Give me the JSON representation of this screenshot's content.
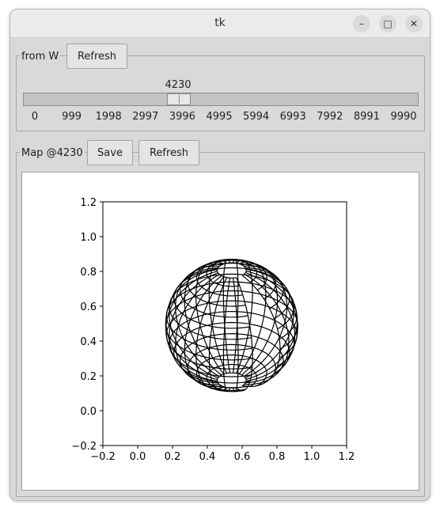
{
  "window": {
    "title": "tk"
  },
  "controls": {
    "minimize_glyph": "–",
    "maximize_glyph": "□",
    "close_glyph": "✕"
  },
  "slider_group": {
    "label": "from W",
    "refresh_label": "Refresh",
    "value_text": "4230",
    "value": 4230,
    "min": 0,
    "max": 9990,
    "ticks": [
      "0",
      "999",
      "1998",
      "2997",
      "3996",
      "4995",
      "5994",
      "6993",
      "7992",
      "8991",
      "9990"
    ]
  },
  "map_group": {
    "label": "Map @4230",
    "save_label": "Save",
    "refresh_label": "Refresh"
  },
  "chart_data": {
    "type": "wireframe",
    "title": "",
    "xlabel": "",
    "ylabel": "",
    "xlim": [
      -0.2,
      1.2
    ],
    "ylim": [
      -0.2,
      1.2
    ],
    "xticks": [
      "−0.2",
      "0.0",
      "0.2",
      "0.4",
      "0.6",
      "0.8",
      "1.0",
      "1.2"
    ],
    "yticks": [
      "−0.2",
      "0.0",
      "0.2",
      "0.4",
      "0.6",
      "0.8",
      "1.0",
      "1.2"
    ],
    "grid": false,
    "line_color": "#000000",
    "description_of_shape": "wrapped sphere-like wireframe mesh"
  }
}
